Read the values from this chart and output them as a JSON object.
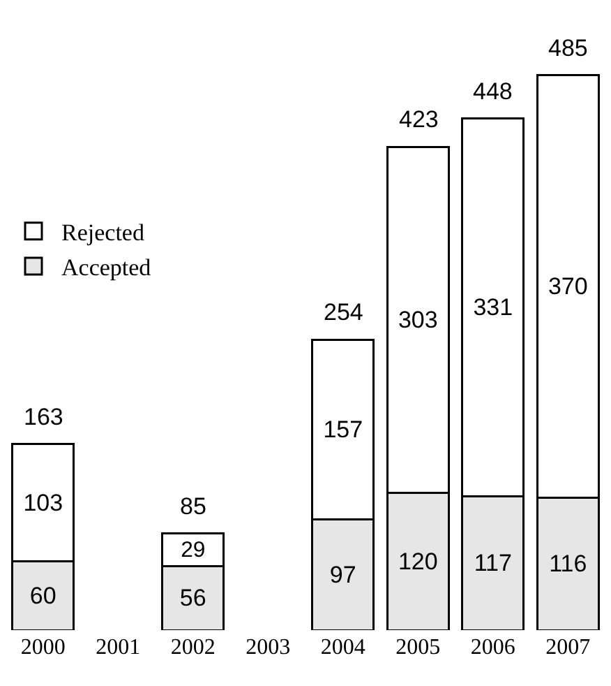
{
  "chart_data": {
    "type": "bar",
    "stacked": true,
    "categories": [
      "2000",
      "2001",
      "2002",
      "2003",
      "2004",
      "2005",
      "2006",
      "2007"
    ],
    "series": [
      {
        "name": "Accepted",
        "color": "#e6e6e6",
        "values": [
          60,
          null,
          56,
          null,
          97,
          120,
          117,
          116
        ]
      },
      {
        "name": "Rejected",
        "color": "#ffffff",
        "values": [
          103,
          null,
          29,
          null,
          157,
          303,
          331,
          370
        ]
      }
    ],
    "data_labels": true,
    "totals": [
      "163",
      null,
      "85",
      null,
      "254",
      "423",
      "448",
      "485"
    ],
    "legend": "top left"
  }
}
